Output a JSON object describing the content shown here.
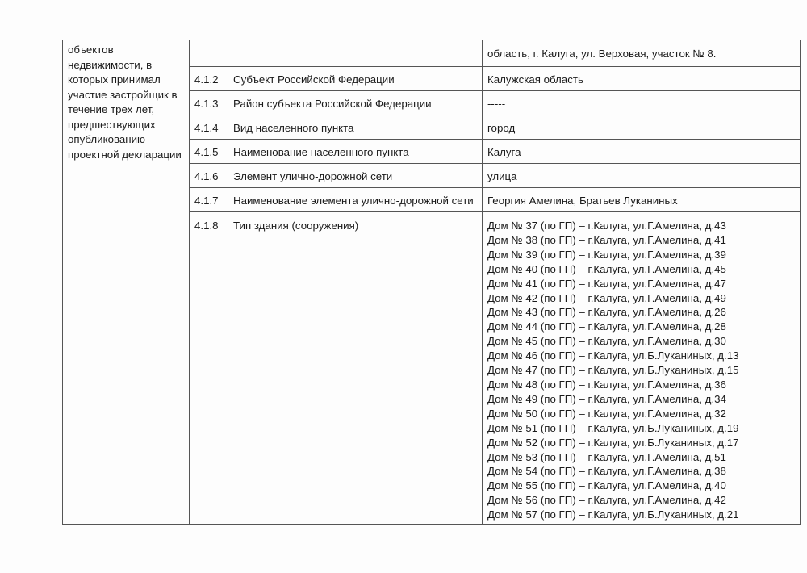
{
  "left_cell": [
    "объектов",
    "недвижимости, в",
    "которых принимал",
    "участие застройщик в",
    "течение трех лет,",
    "предшествующих",
    "опубликованию",
    "проектной декларации"
  ],
  "first_row_value": "область, г. Калуга, ул. Верховая, участок № 8.",
  "rows": [
    {
      "num": "4.1.2",
      "label": "Субъект Российской Федерации",
      "value": "Калужская область"
    },
    {
      "num": "4.1.3",
      "label": "Район субъекта Российской Федерации",
      "value": "-----"
    },
    {
      "num": "4.1.4",
      "label": "Вид населенного пункта",
      "value": "город"
    },
    {
      "num": "4.1.5",
      "label": "Наименование населенного пункта",
      "value": "Калуга"
    },
    {
      "num": "4.1.6",
      "label": "Элемент улично-дорожной сети",
      "value": "улица"
    },
    {
      "num": "4.1.7",
      "label": "Наименование элемента улично-дорожной сети",
      "value": "Георгия Амелина, Братьев Луканиных"
    }
  ],
  "building_row": {
    "num": "4.1.8",
    "label": "Тип здания (сооружения)"
  },
  "buildings": [
    "Дом № 37 (по ГП) – г.Калуга, ул.Г.Амелина, д.43",
    "Дом № 38 (по ГП) – г.Калуга, ул.Г.Амелина, д.41",
    "Дом № 39 (по ГП) – г.Калуга, ул.Г.Амелина, д.39",
    "Дом № 40 (по ГП) – г.Калуга, ул.Г.Амелина, д.45",
    "Дом № 41 (по ГП) – г.Калуга, ул.Г.Амелина, д.47",
    "Дом № 42 (по ГП) – г.Калуга, ул.Г.Амелина, д.49",
    "Дом № 43 (по ГП) – г.Калуга, ул.Г.Амелина, д.26",
    "Дом № 44 (по ГП) – г.Калуга, ул.Г.Амелина, д.28",
    "Дом № 45 (по ГП) – г.Калуга, ул.Г.Амелина, д.30",
    "Дом № 46 (по ГП) – г.Калуга, ул.Б.Луканиных, д.13",
    "Дом № 47 (по ГП) – г.Калуга, ул.Б.Луканиных, д.15",
    "Дом № 48 (по ГП) – г.Калуга, ул.Г.Амелина, д.36",
    "Дом № 49 (по ГП) – г.Калуга, ул.Г.Амелина, д.34",
    "Дом № 50 (по ГП) – г.Калуга, ул.Г.Амелина, д.32",
    "Дом № 51 (по ГП) – г.Калуга, ул.Б.Луканиных, д.19",
    "Дом № 52 (по ГП) – г.Калуга, ул.Б.Луканиных, д.17",
    "Дом № 53 (по ГП) – г.Калуга, ул.Г.Амелина, д.51",
    "Дом № 54 (по ГП) – г.Калуга, ул.Г.Амелина, д.38",
    "Дом № 55 (по ГП) – г.Калуга, ул.Г.Амелина, д.40",
    "Дом № 56 (по ГП) – г.Калуга, ул.Г.Амелина, д.42",
    "Дом № 57 (по ГП) – г.Калуга, ул.Б.Луканиных, д.21"
  ]
}
